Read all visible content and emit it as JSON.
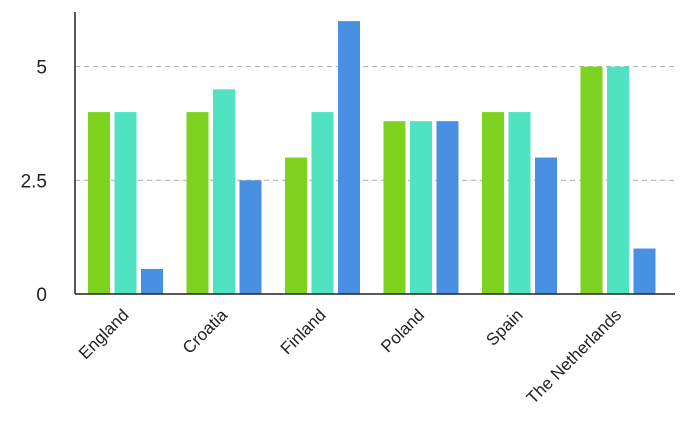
{
  "chart_data": {
    "type": "bar",
    "title": "",
    "xlabel": "",
    "ylabel": "",
    "categories": [
      "England",
      "Croatia",
      "Finland",
      "Poland",
      "Spain",
      "The Netherlands"
    ],
    "series": [
      {
        "values": [
          4,
          4,
          3,
          3.8,
          4,
          5
        ],
        "color": "#7ed321"
      },
      {
        "values": [
          4,
          4.5,
          4,
          3.8,
          4,
          5
        ],
        "color": "#50e3c2"
      },
      {
        "values": [
          0.55,
          2.5,
          6,
          3.8,
          3,
          1
        ],
        "color": "#4a90e2"
      }
    ],
    "ylim": [
      0,
      6.2
    ],
    "yticks": [
      {
        "value": 0,
        "label": "0"
      },
      {
        "value": 2.5,
        "label": "2.5"
      },
      {
        "value": 5,
        "label": "5"
      }
    ],
    "grid": "horizontal dashed",
    "legend": "none"
  }
}
